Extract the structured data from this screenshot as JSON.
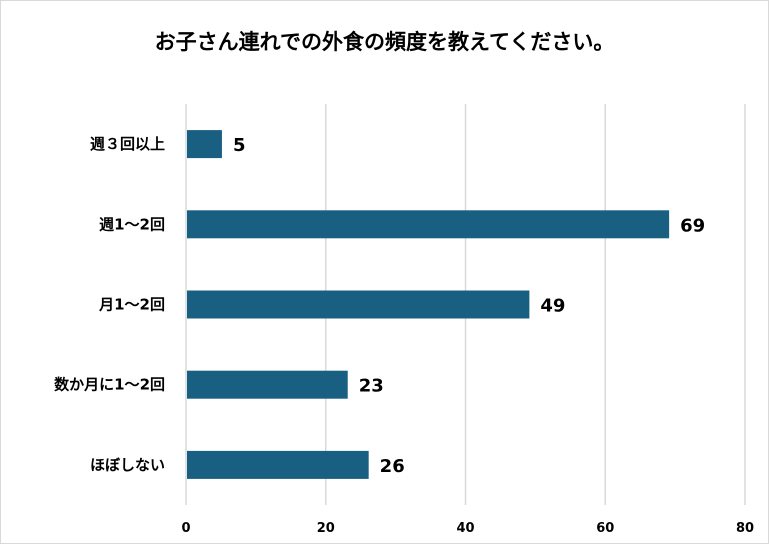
{
  "chart_data": {
    "type": "bar",
    "orientation": "horizontal",
    "title": "お子さん連れでの外食の頻度を教えてください。",
    "categories": [
      "週３回以上",
      "週1〜2回",
      "月1〜2回",
      "数か月に1〜2回",
      "ほぼしない"
    ],
    "values": [
      5,
      69,
      49,
      23,
      26
    ],
    "xlim": [
      0,
      80
    ],
    "xticks": [
      0,
      20,
      40,
      60,
      80
    ],
    "xlabel": "",
    "ylabel": "",
    "grid": true,
    "bar_color": "#185f82"
  }
}
